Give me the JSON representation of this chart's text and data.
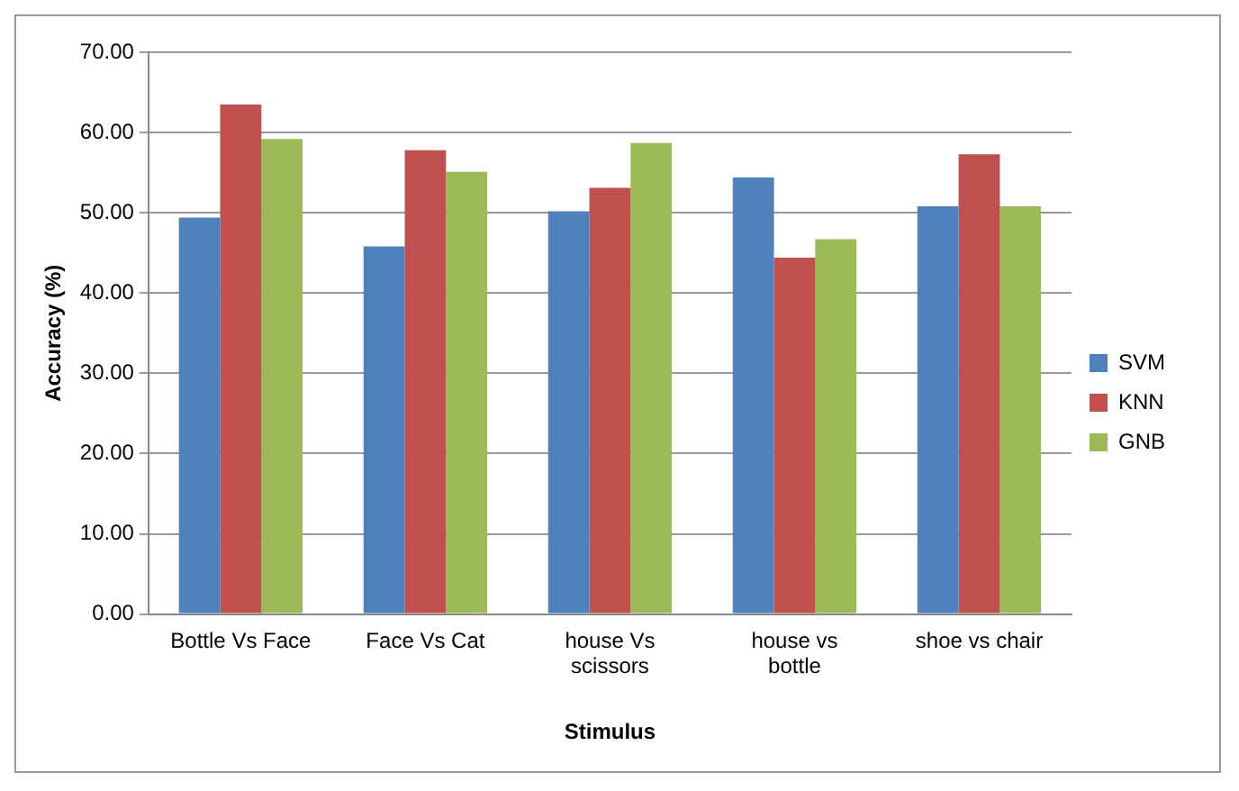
{
  "chart_data": {
    "type": "bar",
    "xlabel": "Stimulus",
    "ylabel": "Accuracy (%)",
    "categories": [
      "Bottle Vs Face",
      "Face Vs Cat",
      "house Vs scissors",
      "house vs bottle",
      "shoe vs chair"
    ],
    "series": [
      {
        "name": "SVM",
        "color": "#4f81bd",
        "values": [
          49.4,
          45.8,
          50.2,
          54.4,
          50.8
        ]
      },
      {
        "name": "KNN",
        "color": "#c0504d",
        "values": [
          63.5,
          57.8,
          53.1,
          44.4,
          57.3
        ]
      },
      {
        "name": "GNB",
        "color": "#9bbb59",
        "values": [
          59.2,
          55.1,
          58.7,
          46.7,
          50.8
        ]
      }
    ],
    "ylim": [
      0,
      70
    ],
    "yticks": [
      {
        "value": 0,
        "label": "0.00"
      },
      {
        "value": 10,
        "label": "10.00"
      },
      {
        "value": 20,
        "label": "20.00"
      },
      {
        "value": 30,
        "label": "30.00"
      },
      {
        "value": 40,
        "label": "40.00"
      },
      {
        "value": 50,
        "label": "50.00"
      },
      {
        "value": 60,
        "label": "60.00"
      },
      {
        "value": 70,
        "label": "70.00"
      }
    ],
    "grid": "y",
    "legend": "right"
  }
}
